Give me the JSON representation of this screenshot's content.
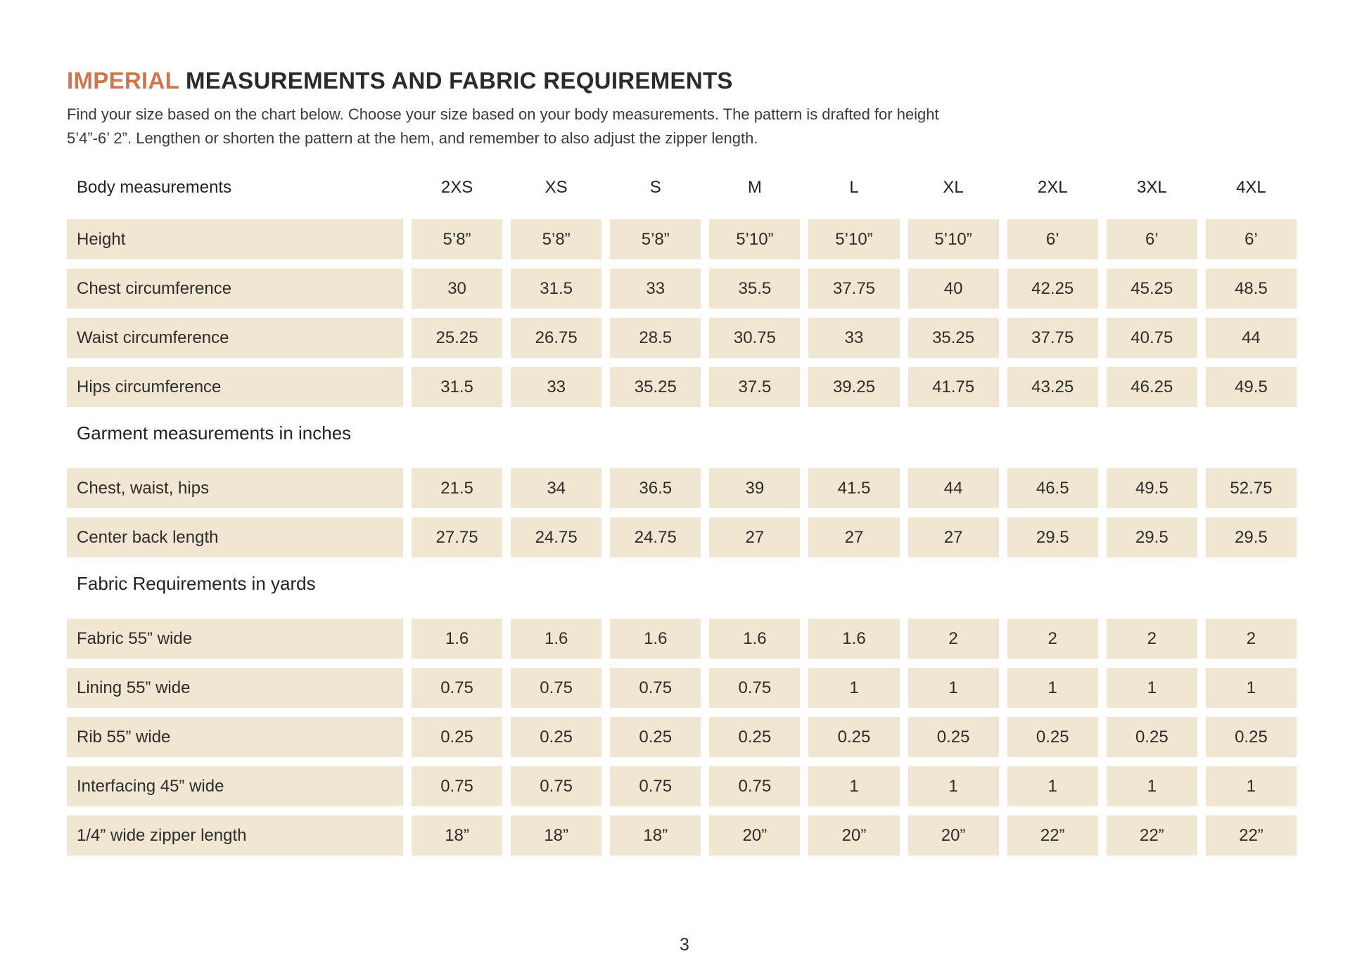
{
  "colors": {
    "accent": "#cf764b",
    "cell_background": "#f1e6d2",
    "heading_text": "#2b2a28",
    "body_text": "#3a3a3a"
  },
  "title": {
    "highlight": "IMPERIAL",
    "rest": " MEASUREMENTS AND FABRIC REQUIREMENTS"
  },
  "intro": "Find your size based on the chart below. Choose your size based on your body measurements. The pattern is drafted for height\n5’4”-6’ 2”. Lengthen or shorten the pattern at the hem, and remember to also adjust the zipper length.",
  "table": {
    "header_label": "Body measurements",
    "sizes": [
      "2XS",
      "XS",
      "S",
      "M",
      "L",
      "XL",
      "2XL",
      "3XL",
      "4XL"
    ],
    "sections": [
      {
        "heading": null,
        "rows": [
          {
            "label": "Height",
            "values": [
              "5’8”",
              "5’8”",
              "5’8”",
              "5’10”",
              "5’10”",
              "5’10”",
              "6’",
              "6’",
              "6’"
            ]
          },
          {
            "label": "Chest circumference",
            "values": [
              "30",
              "31.5",
              "33",
              "35.5",
              "37.75",
              "40",
              "42.25",
              "45.25",
              "48.5"
            ]
          },
          {
            "label": "Waist circumference",
            "values": [
              "25.25",
              "26.75",
              "28.5",
              "30.75",
              "33",
              "35.25",
              "37.75",
              "40.75",
              "44"
            ]
          },
          {
            "label": "Hips circumference",
            "values": [
              "31.5",
              "33",
              "35.25",
              "37.5",
              "39.25",
              "41.75",
              "43.25",
              "46.25",
              "49.5"
            ]
          }
        ]
      },
      {
        "heading": "Garment measurements in inches",
        "rows": [
          {
            "label": "Chest, waist, hips",
            "values": [
              "21.5",
              "34",
              "36.5",
              "39",
              "41.5",
              "44",
              "46.5",
              "49.5",
              "52.75"
            ]
          },
          {
            "label": "Center back length",
            "values": [
              "27.75",
              "24.75",
              "24.75",
              "27",
              "27",
              "27",
              "29.5",
              "29.5",
              "29.5"
            ]
          }
        ]
      },
      {
        "heading": "Fabric Requirements in yards",
        "rows": [
          {
            "label": "Fabric 55” wide",
            "values": [
              "1.6",
              "1.6",
              "1.6",
              "1.6",
              "1.6",
              "2",
              "2",
              "2",
              "2"
            ]
          },
          {
            "label": "Lining 55” wide",
            "values": [
              "0.75",
              "0.75",
              "0.75",
              "0.75",
              "1",
              "1",
              "1",
              "1",
              "1"
            ]
          },
          {
            "label": "Rib 55” wide",
            "values": [
              "0.25",
              "0.25",
              "0.25",
              "0.25",
              "0.25",
              "0.25",
              "0.25",
              "0.25",
              "0.25"
            ]
          },
          {
            "label": "Interfacing 45” wide",
            "values": [
              "0.75",
              "0.75",
              "0.75",
              "0.75",
              "1",
              "1",
              "1",
              "1",
              "1"
            ]
          },
          {
            "label": "1/4” wide zipper length",
            "values": [
              "18”",
              "18”",
              "18”",
              "20”",
              "20”",
              "20”",
              "22”",
              "22”",
              "22”"
            ]
          }
        ]
      }
    ]
  },
  "page_number": "3"
}
